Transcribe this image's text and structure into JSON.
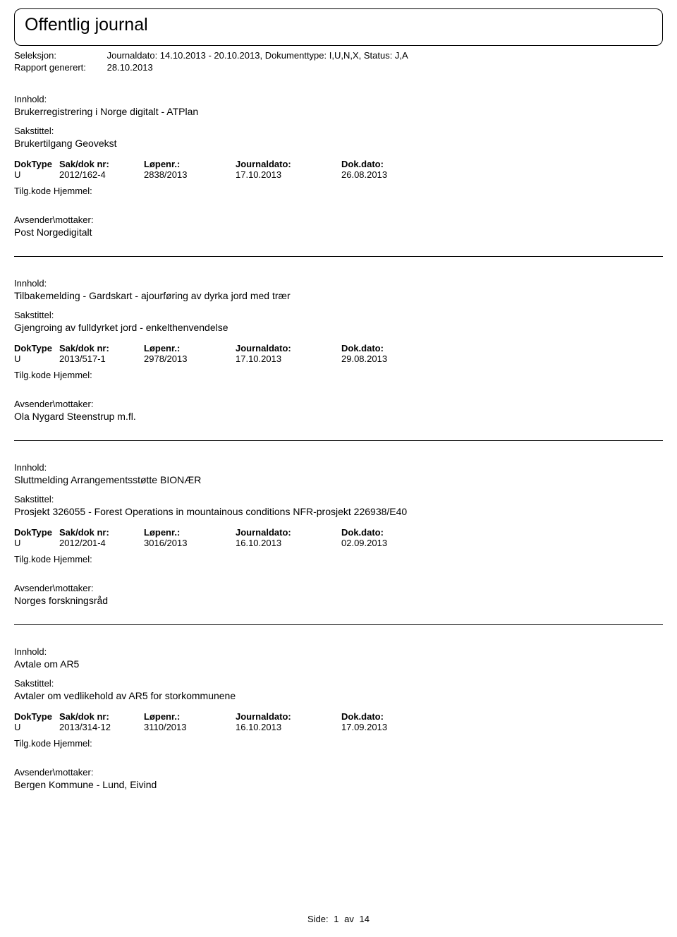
{
  "title": "Offentlig journal",
  "header": {
    "seleksjon_label": "Seleksjon:",
    "seleksjon_value": "Journaldato: 14.10.2013 - 20.10.2013, Dokumenttype: I,U,N,X, Status: J,A",
    "rapport_label": "Rapport generert:",
    "rapport_value": "28.10.2013"
  },
  "labels": {
    "innhold": "Innhold:",
    "sakstittel": "Sakstittel:",
    "tilg": "Tilg.kode Hjemmel:",
    "avsender": "Avsender\\mottaker:",
    "doktype": "DokType",
    "sakdok": "Sak/dok nr:",
    "lopenr": "Løpenr.:",
    "jdato": "Journaldato:",
    "ddato": "Dok.dato:"
  },
  "entries": [
    {
      "innhold": "Brukerregistrering i Norge digitalt - ATPlan",
      "sakstittel": "Brukertilgang Geovekst",
      "doktype": "U",
      "sakdok": "2012/162-4",
      "lopenr": "2838/2013",
      "jdato": "17.10.2013",
      "ddato": "26.08.2013",
      "avsender": "Post Norgedigitalt"
    },
    {
      "innhold": "Tilbakemelding - Gardskart - ajourføring av dyrka jord med trær",
      "sakstittel": "Gjengroing av fulldyrket jord - enkelthenvendelse",
      "doktype": "U",
      "sakdok": "2013/517-1",
      "lopenr": "2978/2013",
      "jdato": "17.10.2013",
      "ddato": "29.08.2013",
      "avsender": "Ola Nygard Steenstrup m.fl."
    },
    {
      "innhold": "Sluttmelding Arrangementsstøtte BIONÆR",
      "sakstittel": "Prosjekt 326055 - Forest Operations in mountainous conditions NFR-prosjekt 226938/E40",
      "doktype": "U",
      "sakdok": "2012/201-4",
      "lopenr": "3016/2013",
      "jdato": "16.10.2013",
      "ddato": "02.09.2013",
      "avsender": "Norges forskningsråd"
    },
    {
      "innhold": "Avtale om AR5",
      "sakstittel": "Avtaler om vedlikehold av AR5 for storkommunene",
      "doktype": "U",
      "sakdok": "2013/314-12",
      "lopenr": "3110/2013",
      "jdato": "16.10.2013",
      "ddato": "17.09.2013",
      "avsender": "Bergen Kommune - Lund, Eivind"
    }
  ],
  "footer": {
    "side_label": "Side:",
    "page_num": "1",
    "of": "av",
    "total": "14"
  },
  "colors": {
    "text": "#000000",
    "background": "#ffffff",
    "border": "#000000"
  }
}
